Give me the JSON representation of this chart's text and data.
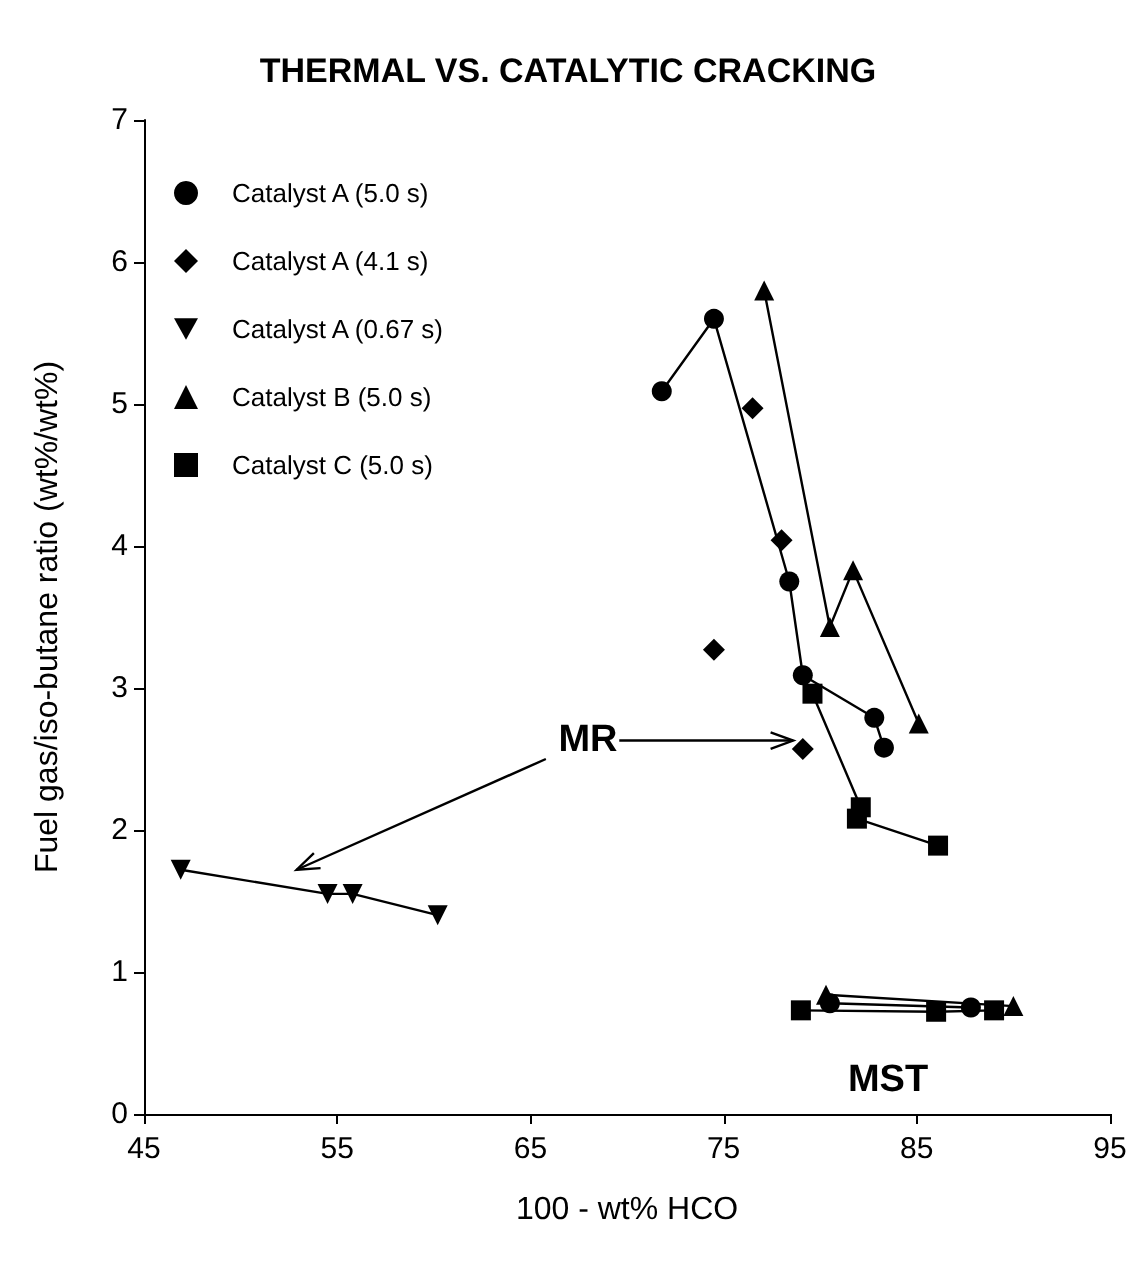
{
  "chart_data": {
    "type": "scatter",
    "title": "THERMAL VS. CATALYTIC CRACKING",
    "xlabel": "100 - wt% HCO",
    "ylabel": "Fuel gas/iso-butane ratio (wt%/wt%)",
    "xlim": [
      45,
      95
    ],
    "xticks": [
      45,
      55,
      65,
      75,
      85,
      95
    ],
    "ylim": [
      0,
      7
    ],
    "yticks": [
      0,
      1,
      2,
      3,
      4,
      5,
      6,
      7
    ],
    "grid": false,
    "legend": "top left",
    "series": [
      {
        "name": "Catalyst A (5.0 s)",
        "type": "line",
        "marker": "circle",
        "color": "#000000",
        "x": [
          71.8,
          74.5,
          78.4,
          79.1,
          82.8,
          83.3
        ],
        "values": [
          5.09,
          5.6,
          3.75,
          3.09,
          2.79,
          2.58
        ]
      },
      {
        "name": "Catalyst A (4.1 s)",
        "marker": "diamond",
        "color": "#000000",
        "x": [
          76.5,
          78.0,
          74.5,
          79.1
        ],
        "values": [
          4.97,
          4.04,
          3.27,
          2.57
        ]
      },
      {
        "name": "Catalyst A (0.67 s)",
        "type": "line",
        "marker": "triangle-down",
        "color": "#000000",
        "x": [
          46.9,
          54.5,
          55.8,
          60.2
        ],
        "values": [
          1.72,
          1.55,
          1.55,
          1.4
        ]
      },
      {
        "name": "Catalyst B (5.0 s)",
        "type": "line",
        "marker": "triangle",
        "color": "#000000",
        "x": [
          77.1,
          80.5,
          81.7,
          85.1
        ],
        "values": [
          5.8,
          3.43,
          3.83,
          2.75
        ]
      },
      {
        "name": "Catalyst C (5.0 s)",
        "type": "line",
        "marker": "square",
        "color": "#000000",
        "x": [
          79.6,
          82.1,
          81.9,
          86.1
        ],
        "values": [
          2.96,
          2.16,
          2.08,
          1.89
        ]
      },
      {
        "type": "line",
        "marker": "circle",
        "color": "#000000",
        "x": [
          80.5,
          87.8
        ],
        "values": [
          0.78,
          0.75
        ]
      },
      {
        "type": "line",
        "marker": "triangle",
        "color": "#000000",
        "x": [
          80.3,
          90.0
        ],
        "values": [
          0.84,
          0.76
        ]
      },
      {
        "type": "line",
        "marker": "square",
        "color": "#000000",
        "x": [
          79.0,
          86.0,
          89.0
        ],
        "values": [
          0.73,
          0.72,
          0.73
        ]
      }
    ],
    "annotations": [
      "MR",
      "MST"
    ]
  }
}
